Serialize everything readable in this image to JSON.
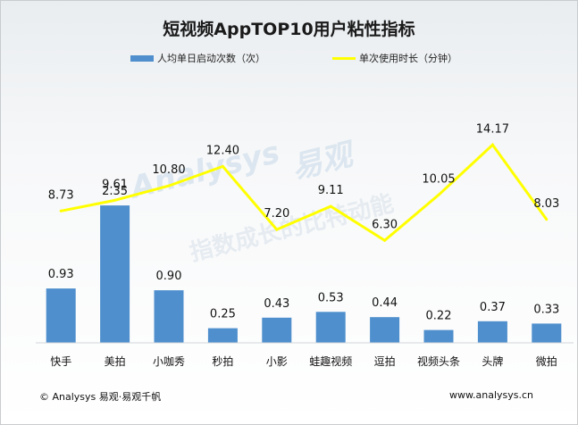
{
  "chart_data": {
    "type": "bar+line",
    "title": "短视频AppTOP10用户粘性指标",
    "categories": [
      "快手",
      "美拍",
      "小咖秀",
      "秒拍",
      "小影",
      "蛙趣视频",
      "逗拍",
      "视频头条",
      "头牌",
      "微拍"
    ],
    "series": [
      {
        "name": "人均单日启动次数（次）",
        "kind": "bar",
        "color": "#4f8fcd",
        "values": [
          0.93,
          2.35,
          0.9,
          0.25,
          0.43,
          0.53,
          0.44,
          0.22,
          0.37,
          0.33
        ],
        "labels": [
          "0.93",
          "2.35",
          "0.90",
          "0.25",
          "0.43",
          "0.53",
          "0.44",
          "0.22",
          "0.37",
          "0.33"
        ]
      },
      {
        "name": "单次使用时长（分钟）",
        "kind": "line",
        "color": "#ffff00",
        "values": [
          8.73,
          9.61,
          10.8,
          12.4,
          7.2,
          9.11,
          6.3,
          10.05,
          14.17,
          8.03
        ],
        "labels": [
          "8.73",
          "9.61",
          "10.80",
          "12.40",
          "7.20",
          "9.11",
          "6.30",
          "10.05",
          "14.17",
          "8.03"
        ]
      }
    ],
    "bar_ylim": [
      0,
      2.8
    ],
    "line_ylim": [
      -16.5,
      16.5
    ],
    "grid": false,
    "legend": "top-center"
  },
  "watermark": {
    "brand_cn": "易观",
    "brand_en": "Analysys",
    "slogan": "指数成长的比特动能"
  },
  "footer": {
    "source": "© Analysys 易观·易观千帆",
    "website": "www.analysys.cn"
  }
}
